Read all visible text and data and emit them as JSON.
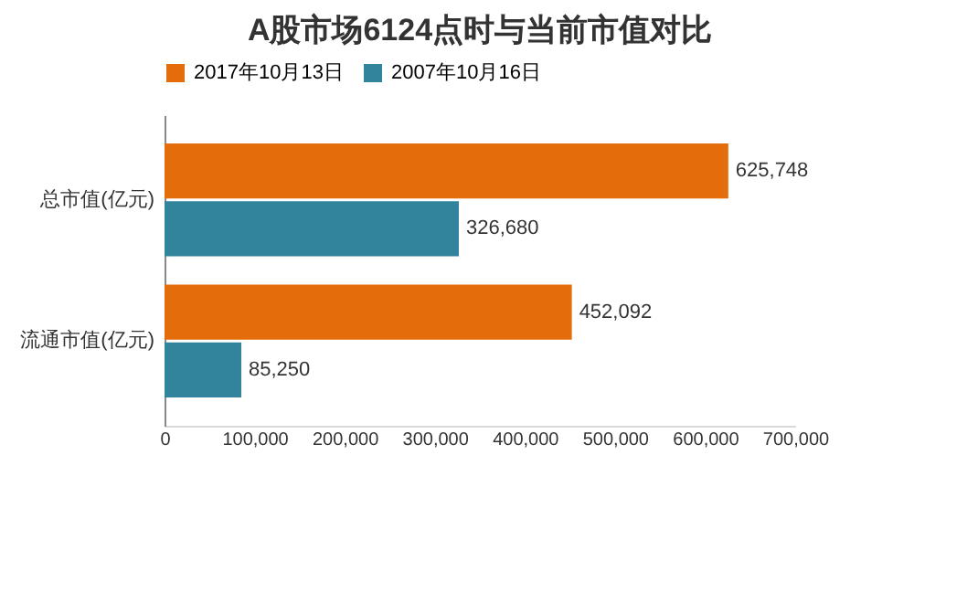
{
  "chart_data": {
    "type": "bar",
    "orientation": "horizontal",
    "title": "A股市场6124点时与当前市值对比",
    "categories": [
      "总市值(亿元)",
      "流通市值(亿元)"
    ],
    "series": [
      {
        "name": "2017年10月13日",
        "color": "#e46c0a",
        "values": [
          625748,
          452092
        ],
        "value_labels": [
          "625,748",
          "452,092"
        ]
      },
      {
        "name": "2007年10月16日",
        "color": "#31849b",
        "values": [
          326680,
          85250
        ],
        "value_labels": [
          "326,680",
          "85,250"
        ]
      }
    ],
    "xlim": [
      0,
      700000
    ],
    "xticks": [
      0,
      {
        "value": 100000,
        "label": "100,000"
      },
      {
        "value": 200000,
        "label": "200,000"
      },
      {
        "value": 300000,
        "label": "300,000"
      },
      {
        "value": 400000,
        "label": "400,000"
      },
      {
        "value": 500000,
        "label": "500,000"
      },
      {
        "value": 600000,
        "label": "600,000"
      },
      {
        "value": 700000,
        "label": "700,000"
      }
    ],
    "legend": "top",
    "grid": false
  }
}
